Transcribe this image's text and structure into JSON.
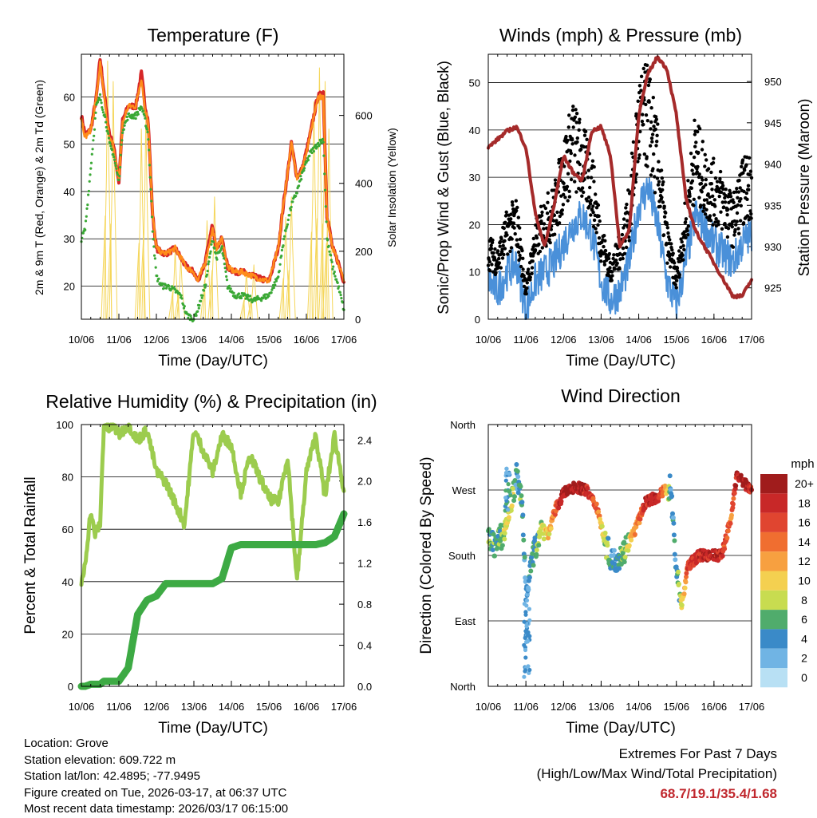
{
  "x_tick_labels": [
    "10/06",
    "11/06",
    "12/06",
    "13/06",
    "14/06",
    "15/06",
    "16/06",
    "17/06"
  ],
  "chart_data": [
    {
      "type": "line",
      "title": "Temperature (F)",
      "xlabel": "Time (Day/UTC)",
      "ylabel": "2m & 9m T (Red, Orange) & 2m Td (Green)",
      "y2label": "Solar Insolation (Yellow)",
      "x": [
        0,
        0.1,
        0.25,
        0.4,
        0.5,
        0.65,
        0.75,
        0.85,
        1.0,
        1.1,
        1.25,
        1.45,
        1.6,
        1.7,
        1.78,
        1.9,
        2.0,
        2.15,
        2.3,
        2.5,
        2.65,
        2.8,
        3.0,
        3.1,
        3.3,
        3.5,
        3.6,
        3.75,
        3.9,
        4.1,
        4.3,
        4.6,
        5.0,
        5.25,
        5.4,
        5.6,
        5.75,
        5.9,
        6.1,
        6.3,
        6.45,
        6.55,
        6.7,
        6.85,
        7.0
      ],
      "series": [
        {
          "name": "2m T",
          "color": "#d62728",
          "values": [
            56,
            52,
            53,
            60,
            68,
            58,
            52,
            50,
            42,
            55,
            58,
            58,
            65,
            58,
            55,
            35,
            28,
            27,
            27,
            28,
            26,
            24,
            23,
            21,
            25,
            33,
            28,
            30,
            24,
            23,
            23,
            22,
            21,
            28,
            38,
            50,
            43,
            45,
            52,
            60,
            61,
            35,
            28,
            25,
            21
          ]
        },
        {
          "name": "9m T",
          "color": "#ff8c1a",
          "values": [
            55.5,
            51.5,
            53,
            60,
            67,
            57,
            51,
            50,
            42,
            54.5,
            58,
            58,
            64,
            57,
            55,
            35,
            28,
            27,
            27,
            28,
            26,
            24,
            23,
            21,
            25,
            32,
            28,
            30,
            24,
            23,
            23,
            22,
            21,
            28,
            38,
            50,
            43,
            45,
            52,
            60,
            60,
            35,
            28,
            25,
            21
          ]
        },
        {
          "name": "2m Td",
          "color": "#3aa835",
          "values": [
            30,
            32,
            45,
            58,
            60,
            55,
            50,
            48,
            42,
            53,
            56,
            56,
            58,
            55,
            52,
            32,
            22,
            20,
            20,
            19,
            18,
            14,
            13,
            15,
            20,
            30,
            26,
            28,
            20,
            18,
            18,
            17,
            18,
            22,
            30,
            37,
            40,
            44,
            48,
            50,
            51,
            30,
            24,
            20,
            15
          ]
        }
      ],
      "ylim": [
        13,
        69
      ],
      "yticks": [
        20,
        30,
        40,
        50,
        60
      ],
      "y2ticks": [
        0,
        200,
        400,
        600
      ],
      "solar_peaks": [
        {
          "day": 0.7,
          "value": 760
        },
        {
          "day": 0.85,
          "value": 700
        },
        {
          "day": 1.6,
          "value": 560
        },
        {
          "day": 1.72,
          "value": 600
        },
        {
          "day": 2.5,
          "value": 200
        },
        {
          "day": 2.65,
          "value": 180
        },
        {
          "day": 3.35,
          "value": 290
        },
        {
          "day": 3.55,
          "value": 360
        },
        {
          "day": 4.4,
          "value": 140
        },
        {
          "day": 4.6,
          "value": 160
        },
        {
          "day": 5.45,
          "value": 300
        },
        {
          "day": 5.6,
          "value": 360
        },
        {
          "day": 6.2,
          "value": 640
        },
        {
          "day": 6.35,
          "value": 740
        },
        {
          "day": 6.5,
          "value": 700
        },
        {
          "day": 6.6,
          "value": 560
        }
      ]
    },
    {
      "type": "line",
      "title": "Winds (mph) & Pressure (mb)",
      "xlabel": "Time (Day/UTC)",
      "ylabel": "Sonic/Prop Wind & Gust (Blue, Black)",
      "y2label": "Station Pressure (Maroon)",
      "yticks": [
        0,
        10,
        20,
        30,
        40,
        50
      ],
      "y2ticks": [
        925,
        930,
        935,
        940,
        945,
        950
      ],
      "ylim": [
        0,
        56
      ],
      "y2lim": [
        921.2,
        953.3
      ],
      "x": [
        0,
        0.25,
        0.5,
        0.75,
        1.0,
        1.25,
        1.5,
        1.75,
        2.0,
        2.25,
        2.5,
        2.75,
        3.0,
        3.25,
        3.5,
        3.75,
        4.0,
        4.25,
        4.5,
        4.75,
        5.0,
        5.25,
        5.5,
        5.75,
        6.0,
        6.25,
        6.5,
        6.75,
        7.0
      ],
      "series": [
        {
          "name": "Wind",
          "color": "#4a90d9",
          "values": [
            8,
            6,
            10,
            12,
            2,
            8,
            10,
            12,
            16,
            20,
            22,
            18,
            8,
            4,
            6,
            12,
            24,
            28,
            20,
            8,
            3,
            12,
            22,
            20,
            16,
            14,
            12,
            16,
            18
          ]
        },
        {
          "name": "Gust",
          "color": "#000000",
          "values": [
            14,
            12,
            18,
            20,
            6,
            16,
            20,
            22,
            30,
            36,
            32,
            28,
            16,
            10,
            14,
            22,
            40,
            42,
            32,
            16,
            8,
            20,
            34,
            28,
            26,
            24,
            20,
            26,
            28
          ]
        }
      ],
      "pressure": [
        942,
        943,
        944,
        944.5,
        942,
        934,
        930,
        935,
        941,
        939,
        938,
        944,
        944.5,
        941,
        930,
        932,
        946,
        951,
        953,
        951.5,
        946,
        936,
        932,
        930,
        928,
        926,
        924,
        924,
        926
      ]
    },
    {
      "type": "line",
      "title": "Relative Humidity (%) & Precipitation (in)",
      "xlabel": "Time (Day/UTC)",
      "ylabel": "Percent & Total Rainfall",
      "yticks": [
        0,
        20,
        40,
        60,
        80,
        100
      ],
      "y2ticks": [
        0.0,
        0.4,
        0.8,
        1.2,
        1.6,
        2.0,
        2.4
      ],
      "x": [
        0,
        0.1,
        0.25,
        0.35,
        0.5,
        0.6,
        0.75,
        0.85,
        1.0,
        1.25,
        1.5,
        1.75,
        2.0,
        2.25,
        2.5,
        2.75,
        3.0,
        3.25,
        3.5,
        3.75,
        4.0,
        4.25,
        4.5,
        4.75,
        5.0,
        5.25,
        5.5,
        5.75,
        6.0,
        6.25,
        6.5,
        6.75,
        7.0
      ],
      "series": [
        {
          "name": "RH",
          "color": "#9ccc4e",
          "values": [
            38,
            47,
            67,
            58,
            62,
            100,
            98,
            100,
            96,
            100,
            94,
            98,
            82,
            78,
            70,
            62,
            98,
            90,
            82,
            96,
            92,
            74,
            88,
            80,
            72,
            70,
            88,
            40,
            82,
            96,
            72,
            96,
            75
          ]
        },
        {
          "name": "Total Rainfall",
          "color": "#3daa44",
          "values": [
            0,
            0,
            0.02,
            0.02,
            0.02,
            0.05,
            0.05,
            0.05,
            0.05,
            0.18,
            0.7,
            0.84,
            0.88,
            1.0,
            1.0,
            1.0,
            1.0,
            1.0,
            1.0,
            1.05,
            1.35,
            1.38,
            1.38,
            1.38,
            1.38,
            1.38,
            1.38,
            1.38,
            1.38,
            1.38,
            1.4,
            1.46,
            1.68
          ]
        }
      ]
    },
    {
      "type": "scatter",
      "title": "Wind Direction",
      "xlabel": "Time (Day/UTC)",
      "ylabel": "Direction (Colored By Speed)",
      "ytick_labels": [
        "North",
        "East",
        "South",
        "West",
        "North"
      ],
      "colorbar_unit": "mph",
      "colorbar_labels": [
        "20+",
        "18",
        "16",
        "14",
        "12",
        "10",
        "8",
        "6",
        "4",
        "2",
        "0"
      ],
      "colorbar_colors": [
        "#a01c1c",
        "#c82828",
        "#e04530",
        "#f06e30",
        "#f7a040",
        "#f4d050",
        "#c8dc50",
        "#50ac6c",
        "#3a8ac8",
        "#70b4e4",
        "#b8e0f4"
      ],
      "x": [
        0,
        0.2,
        0.4,
        0.6,
        0.75,
        0.9,
        1.0,
        1.2,
        1.4,
        1.6,
        1.8,
        2.0,
        2.3,
        2.6,
        2.9,
        3.1,
        3.3,
        3.6,
        3.9,
        4.2,
        4.5,
        4.7,
        4.85,
        5.0,
        5.15,
        5.3,
        5.6,
        5.9,
        6.2,
        6.45,
        6.6,
        6.8,
        7.0
      ],
      "direction_deg": [
        200,
        195,
        210,
        245,
        290,
        250,
        130,
        180,
        220,
        210,
        245,
        265,
        275,
        270,
        245,
        200,
        170,
        185,
        215,
        255,
        260,
        270,
        275,
        160,
        110,
        165,
        180,
        180,
        180,
        230,
        290,
        280,
        270
      ],
      "speed_mph": [
        6,
        5,
        7,
        10,
        4,
        6,
        3,
        5,
        8,
        10,
        16,
        20,
        20,
        18,
        14,
        8,
        4,
        6,
        12,
        18,
        18,
        14,
        3,
        5,
        8,
        16,
        18,
        18,
        18,
        14,
        18,
        20,
        18
      ]
    }
  ],
  "info": {
    "location": "Location: Grove",
    "elevation": "Station elevation: 609.722 m",
    "latlon": "Station lat/lon: 42.4895; -77.9495",
    "created": "Figure created on Tue, 2026-03-17, at 06:37 UTC",
    "recent": "Most recent data timestamp: 2026/03/17 06:15:00"
  },
  "extremes": {
    "title": "Extremes For Past 7 Days",
    "subtitle": "(High/Low/Max Wind/Total Precipitation)",
    "values": "68.7/19.1/35.4/1.68"
  }
}
